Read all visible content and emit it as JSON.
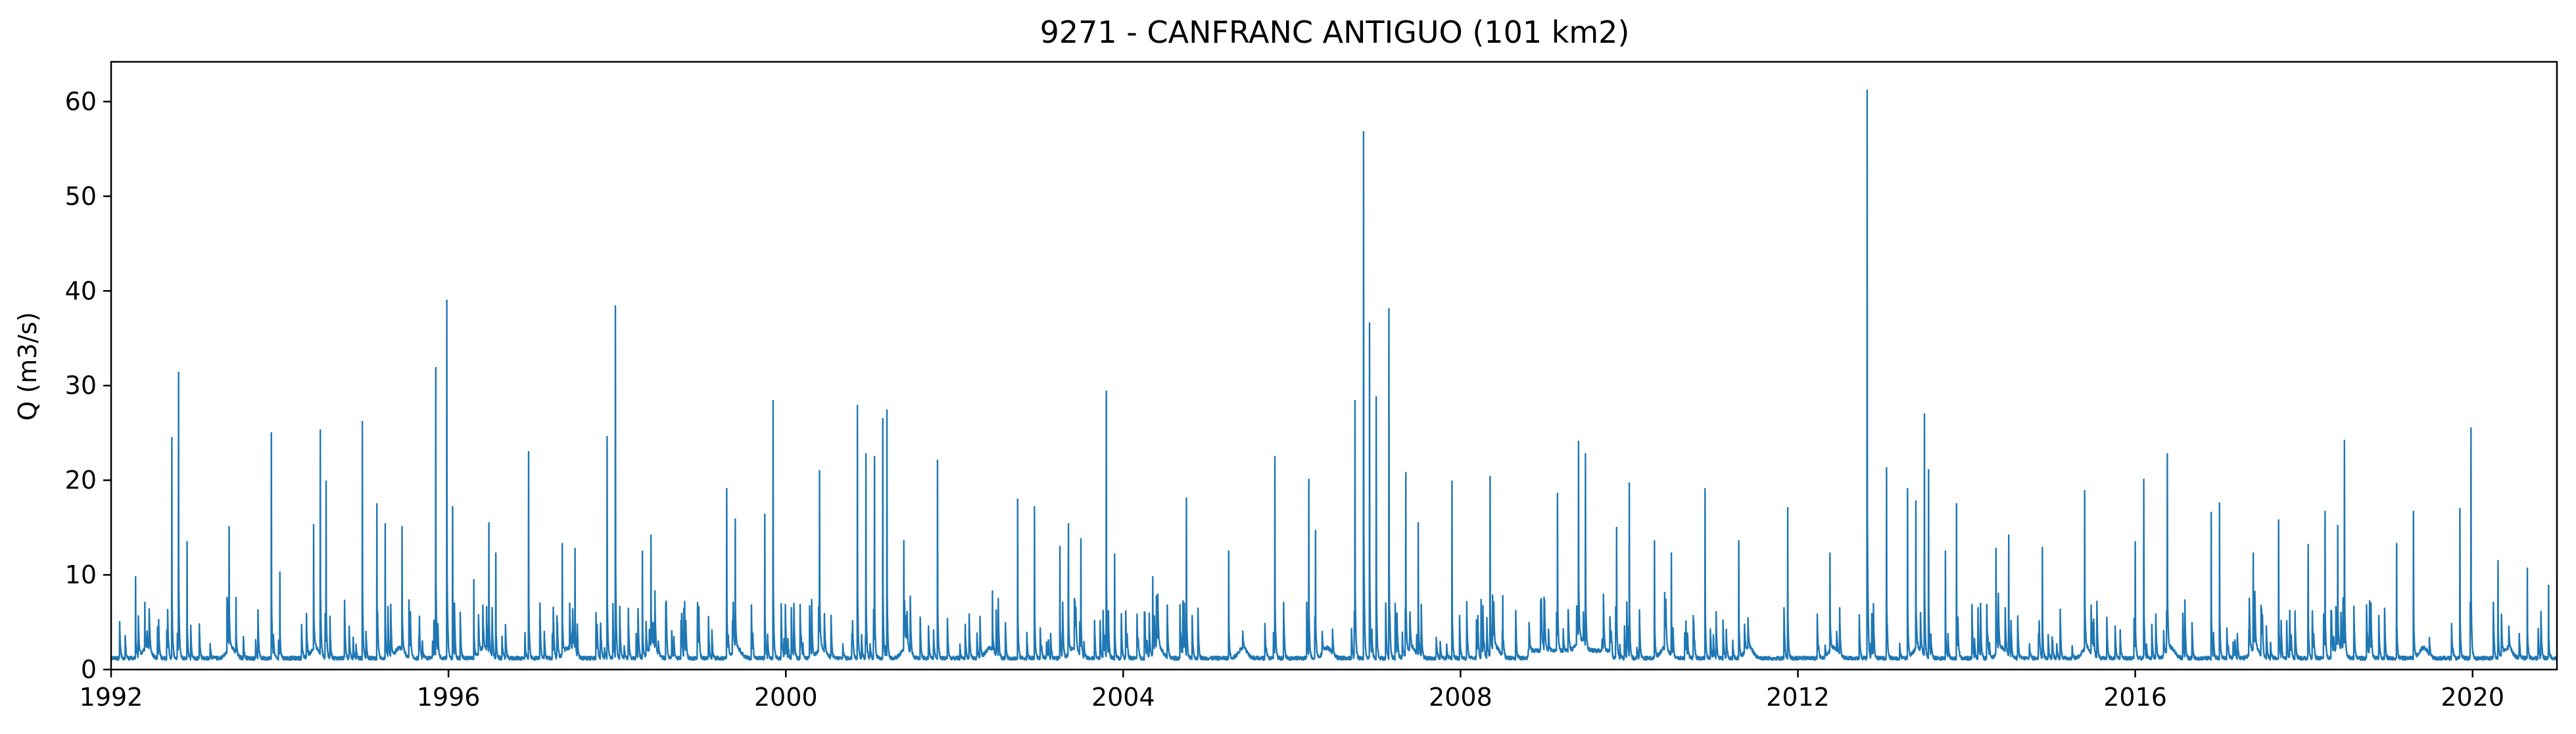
{
  "chart_data": {
    "type": "line",
    "title": "9271 - CANFRANC ANTIGUO (101 km2)",
    "xlabel": "",
    "ylabel": "Q (m3/s)",
    "xlim": [
      1992.0,
      2021.0
    ],
    "ylim": [
      0,
      64.2
    ],
    "xticks": [
      1992,
      1996,
      2000,
      2004,
      2008,
      2012,
      2016,
      2020
    ],
    "xtick_labels": [
      "1992",
      "1996",
      "2000",
      "2004",
      "2008",
      "2012",
      "2016",
      "2020"
    ],
    "yticks": [
      0,
      10,
      20,
      30,
      40,
      50,
      60
    ],
    "ytick_labels": [
      "0",
      "10",
      "20",
      "30",
      "40",
      "50",
      "60"
    ],
    "grid": false,
    "line_color": "#1f77b4",
    "series": [
      {
        "name": "",
        "peaks": [
          [
            1992.29,
            9.8
          ],
          [
            1992.4,
            7.1
          ],
          [
            1992.55,
            4.5
          ],
          [
            1992.72,
            24.5
          ],
          [
            1992.8,
            31.4
          ],
          [
            1992.9,
            13.5
          ],
          [
            1993.4,
            15.1
          ],
          [
            1993.48,
            7.6
          ],
          [
            1993.9,
            25.0
          ],
          [
            1994.0,
            10.3
          ],
          [
            1994.4,
            15.3
          ],
          [
            1994.48,
            25.3
          ],
          [
            1994.55,
            19.9
          ],
          [
            1994.98,
            26.2
          ],
          [
            1995.15,
            17.5
          ],
          [
            1995.25,
            15.4
          ],
          [
            1995.45,
            15.1
          ],
          [
            1995.85,
            31.9
          ],
          [
            1995.98,
            39.0
          ],
          [
            1996.05,
            17.2
          ],
          [
            1996.3,
            9.5
          ],
          [
            1996.48,
            15.5
          ],
          [
            1996.56,
            12.3
          ],
          [
            1996.95,
            23.0
          ],
          [
            1997.35,
            13.3
          ],
          [
            1997.5,
            12.8
          ],
          [
            1997.88,
            24.6
          ],
          [
            1997.98,
            38.4
          ],
          [
            1998.3,
            12.5
          ],
          [
            1998.4,
            14.2
          ],
          [
            1998.8,
            7.2
          ],
          [
            1999.3,
            19.1
          ],
          [
            1999.4,
            15.9
          ],
          [
            1999.75,
            16.4
          ],
          [
            1999.85,
            28.4
          ],
          [
            2000.4,
            21.0
          ],
          [
            2000.85,
            27.9
          ],
          [
            2000.95,
            22.8
          ],
          [
            2001.05,
            22.5
          ],
          [
            2001.15,
            26.5
          ],
          [
            2001.2,
            27.4
          ],
          [
            2001.4,
            13.6
          ],
          [
            2001.8,
            22.1
          ],
          [
            2002.45,
            8.3
          ],
          [
            2002.75,
            18.0
          ],
          [
            2002.95,
            17.2
          ],
          [
            2003.25,
            13.0
          ],
          [
            2003.35,
            15.4
          ],
          [
            2003.5,
            13.8
          ],
          [
            2003.8,
            29.4
          ],
          [
            2003.9,
            12.2
          ],
          [
            2004.35,
            9.8
          ],
          [
            2004.75,
            18.1
          ],
          [
            2005.25,
            12.5
          ],
          [
            2005.8,
            22.5
          ],
          [
            2006.2,
            20.1
          ],
          [
            2006.28,
            14.7
          ],
          [
            2006.75,
            28.4
          ],
          [
            2006.85,
            56.8
          ],
          [
            2006.92,
            36.6
          ],
          [
            2007.0,
            28.8
          ],
          [
            2007.15,
            38.1
          ],
          [
            2007.35,
            20.8
          ],
          [
            2007.5,
            15.5
          ],
          [
            2007.9,
            19.9
          ],
          [
            2008.35,
            20.4
          ],
          [
            2008.5,
            7.8
          ],
          [
            2009.15,
            18.6
          ],
          [
            2009.4,
            24.1
          ],
          [
            2009.48,
            22.8
          ],
          [
            2009.85,
            15.0
          ],
          [
            2010.0,
            19.7
          ],
          [
            2010.3,
            13.6
          ],
          [
            2010.5,
            12.3
          ],
          [
            2010.9,
            19.1
          ],
          [
            2011.3,
            13.6
          ],
          [
            2011.88,
            17.1
          ],
          [
            2012.38,
            12.3
          ],
          [
            2012.82,
            61.2
          ],
          [
            2013.05,
            21.3
          ],
          [
            2013.3,
            19.1
          ],
          [
            2013.4,
            17.8
          ],
          [
            2013.5,
            27.0
          ],
          [
            2013.55,
            21.1
          ],
          [
            2013.75,
            12.5
          ],
          [
            2013.88,
            17.5
          ],
          [
            2014.35,
            12.8
          ],
          [
            2014.5,
            14.2
          ],
          [
            2014.9,
            12.9
          ],
          [
            2015.4,
            18.9
          ],
          [
            2016.0,
            13.5
          ],
          [
            2016.1,
            20.1
          ],
          [
            2016.38,
            22.8
          ],
          [
            2016.9,
            16.6
          ],
          [
            2017.0,
            17.6
          ],
          [
            2017.4,
            12.3
          ],
          [
            2017.7,
            15.8
          ],
          [
            2018.05,
            13.2
          ],
          [
            2018.25,
            16.7
          ],
          [
            2018.4,
            15.2
          ],
          [
            2018.48,
            24.2
          ],
          [
            2019.1,
            13.3
          ],
          [
            2019.3,
            16.7
          ],
          [
            2019.85,
            17.0
          ],
          [
            2019.98,
            25.5
          ],
          [
            2020.3,
            11.5
          ],
          [
            2020.65,
            10.7
          ],
          [
            2020.9,
            8.9
          ]
        ]
      }
    ]
  }
}
